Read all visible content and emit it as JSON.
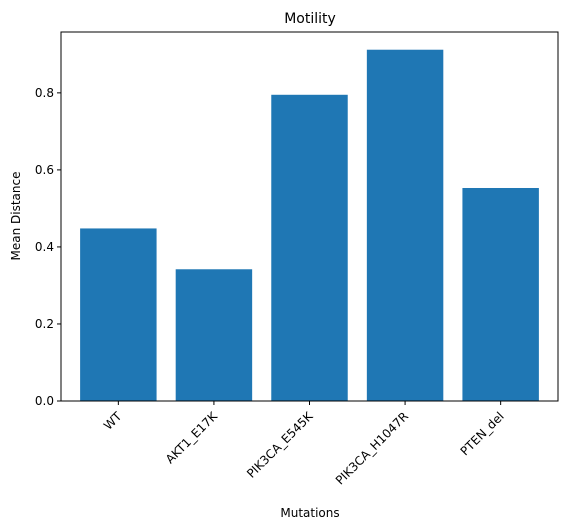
{
  "chart_data": {
    "type": "bar",
    "title": "Motility",
    "xlabel": "Mutations",
    "ylabel": "Mean Distance",
    "categories": [
      "WT",
      "AKT1_E17K",
      "PIK3CA_E545K",
      "PIK3CA_H1047R",
      "PTEN_del"
    ],
    "values": [
      0.448,
      0.342,
      0.795,
      0.912,
      0.553
    ],
    "ylim": [
      0,
      0.958
    ],
    "yticks": [
      "0.0",
      "0.2",
      "0.4",
      "0.6",
      "0.8"
    ],
    "grid": false,
    "bar_color": "#1f77b4",
    "xtick_rotation": "45 degrees"
  }
}
